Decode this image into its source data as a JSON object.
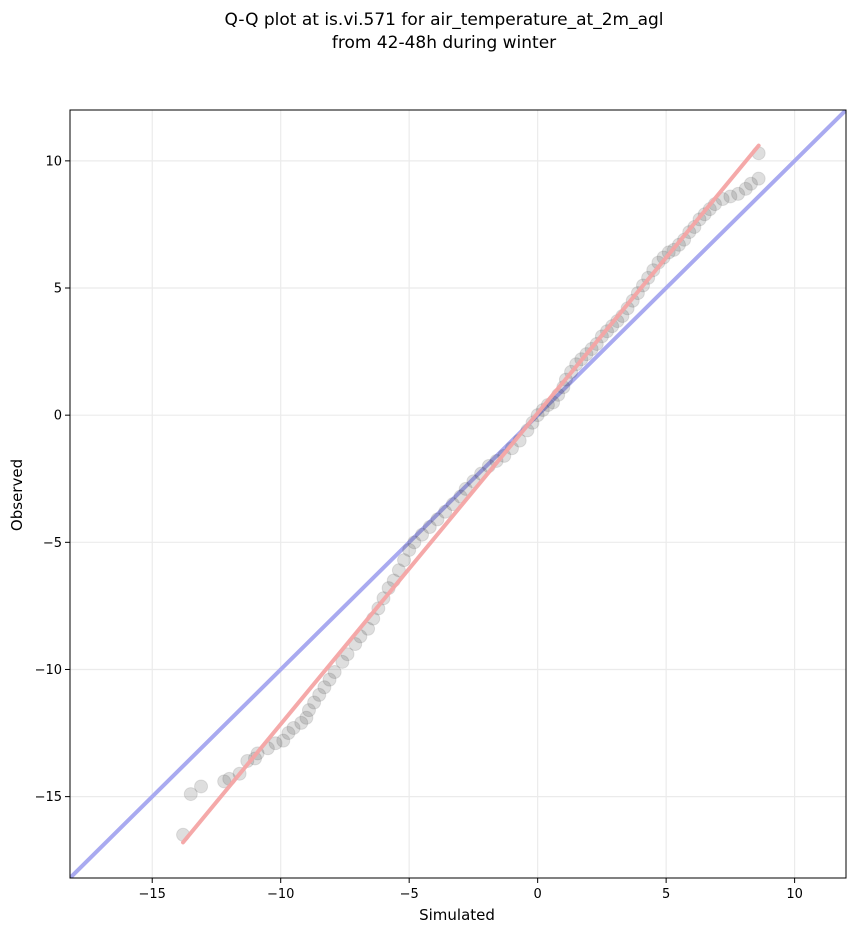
{
  "chart_data": {
    "type": "scatter",
    "title_line1": "Q-Q plot at is.vi.571 for air_temperature_at_2m_agl",
    "title_line2": "from 42-48h during winter",
    "xlabel": "Simulated",
    "ylabel": "Observed",
    "xlim": [
      -18.2,
      12.0
    ],
    "ylim": [
      -18.2,
      12.0
    ],
    "xticks": [
      -15,
      -10,
      -5,
      0,
      5,
      10
    ],
    "yticks": [
      -15,
      -10,
      -5,
      0,
      5,
      10
    ],
    "xtick_labels": [
      "−15",
      "−10",
      "−5",
      "0",
      "5",
      "10"
    ],
    "ytick_labels": [
      "−15",
      "−10",
      "−5",
      "0",
      "5",
      "10"
    ],
    "grid": true,
    "reference_line": {
      "x": [
        -18.2,
        12.0
      ],
      "y": [
        -18.2,
        12.0
      ],
      "color": "#a9aaf0"
    },
    "fit_line": {
      "x": [
        -13.8,
        8.6
      ],
      "y": [
        -16.8,
        10.6
      ],
      "color": "#f4a4a4"
    },
    "quantiles": [
      [
        -13.8,
        -16.5
      ],
      [
        -13.5,
        -14.9
      ],
      [
        -13.1,
        -14.6
      ],
      [
        -12.2,
        -14.4
      ],
      [
        -12.0,
        -14.3
      ],
      [
        -11.6,
        -14.1
      ],
      [
        -11.3,
        -13.6
      ],
      [
        -11.0,
        -13.5
      ],
      [
        -10.9,
        -13.3
      ],
      [
        -10.5,
        -13.1
      ],
      [
        -10.2,
        -12.9
      ],
      [
        -9.9,
        -12.8
      ],
      [
        -9.7,
        -12.5
      ],
      [
        -9.5,
        -12.3
      ],
      [
        -9.2,
        -12.1
      ],
      [
        -9.0,
        -11.9
      ],
      [
        -8.9,
        -11.6
      ],
      [
        -8.7,
        -11.3
      ],
      [
        -8.5,
        -11.0
      ],
      [
        -8.3,
        -10.7
      ],
      [
        -8.1,
        -10.4
      ],
      [
        -7.9,
        -10.1
      ],
      [
        -7.6,
        -9.7
      ],
      [
        -7.4,
        -9.4
      ],
      [
        -7.1,
        -9.0
      ],
      [
        -6.9,
        -8.7
      ],
      [
        -6.6,
        -8.4
      ],
      [
        -6.4,
        -8.0
      ],
      [
        -6.2,
        -7.6
      ],
      [
        -6.0,
        -7.2
      ],
      [
        -5.8,
        -6.8
      ],
      [
        -5.6,
        -6.5
      ],
      [
        -5.4,
        -6.1
      ],
      [
        -5.2,
        -5.7
      ],
      [
        -5.0,
        -5.3
      ],
      [
        -4.8,
        -5.0
      ],
      [
        -4.5,
        -4.7
      ],
      [
        -4.2,
        -4.4
      ],
      [
        -3.9,
        -4.1
      ],
      [
        -3.6,
        -3.8
      ],
      [
        -3.3,
        -3.5
      ],
      [
        -3.0,
        -3.2
      ],
      [
        -2.8,
        -2.9
      ],
      [
        -2.5,
        -2.6
      ],
      [
        -2.2,
        -2.3
      ],
      [
        -1.9,
        -2.0
      ],
      [
        -1.6,
        -1.8
      ],
      [
        -1.3,
        -1.6
      ],
      [
        -1.0,
        -1.3
      ],
      [
        -0.7,
        -1.0
      ],
      [
        -0.4,
        -0.6
      ],
      [
        -0.2,
        -0.3
      ],
      [
        0.0,
        0.0
      ],
      [
        0.2,
        0.2
      ],
      [
        0.4,
        0.4
      ],
      [
        0.6,
        0.5
      ],
      [
        0.8,
        0.8
      ],
      [
        1.0,
        1.1
      ],
      [
        1.1,
        1.4
      ],
      [
        1.3,
        1.7
      ],
      [
        1.5,
        2.0
      ],
      [
        1.7,
        2.2
      ],
      [
        1.9,
        2.4
      ],
      [
        2.1,
        2.6
      ],
      [
        2.3,
        2.8
      ],
      [
        2.5,
        3.1
      ],
      [
        2.7,
        3.3
      ],
      [
        2.9,
        3.5
      ],
      [
        3.1,
        3.7
      ],
      [
        3.3,
        3.9
      ],
      [
        3.5,
        4.2
      ],
      [
        3.7,
        4.5
      ],
      [
        3.9,
        4.8
      ],
      [
        4.1,
        5.1
      ],
      [
        4.3,
        5.4
      ],
      [
        4.5,
        5.7
      ],
      [
        4.7,
        6.0
      ],
      [
        4.9,
        6.2
      ],
      [
        5.1,
        6.4
      ],
      [
        5.3,
        6.5
      ],
      [
        5.5,
        6.7
      ],
      [
        5.7,
        6.9
      ],
      [
        5.9,
        7.2
      ],
      [
        6.1,
        7.4
      ],
      [
        6.3,
        7.7
      ],
      [
        6.5,
        7.9
      ],
      [
        6.7,
        8.1
      ],
      [
        6.9,
        8.3
      ],
      [
        7.2,
        8.5
      ],
      [
        7.5,
        8.6
      ],
      [
        7.8,
        8.7
      ],
      [
        8.1,
        8.9
      ],
      [
        8.3,
        9.1
      ],
      [
        8.6,
        9.3
      ],
      [
        8.6,
        10.3
      ]
    ]
  }
}
